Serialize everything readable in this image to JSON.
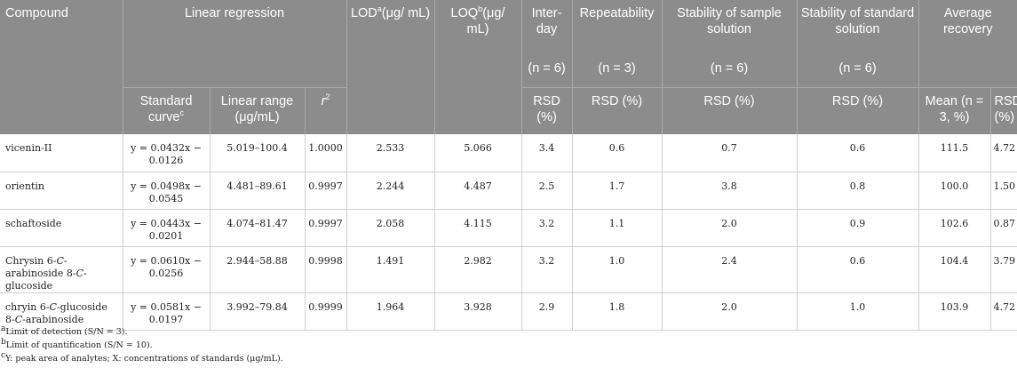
{
  "header": {
    "compound": "Compound",
    "linear_regression": "Linear regression",
    "lod_pre": "LOD",
    "lod_sup": "a",
    "lod_post": "(μg/ mL)",
    "loq_pre": "LOQ",
    "loq_sup": "b",
    "loq_post": "(μg/ mL)",
    "interday": "Inter-day",
    "repeatability": "Repeatability",
    "stability_sample": "Stability of sample solution",
    "stability_standard": "Stability of standard solution",
    "average_recovery": "Average recovery",
    "n_interday": "(n = 6)",
    "n_repeat": "(n = 3)",
    "n_sample": "(n = 6)",
    "n_standard": "(n = 6)",
    "std_curve": "Standard curve",
    "std_curve_sup": "c",
    "linear_range": "Linear range (μg/mL)",
    "r_italic": "r",
    "r_sup": "2",
    "rsd_interday": "RSD (%)",
    "rsd_repeat": "RSD (%)",
    "rsd_sample": "RSD (%)",
    "rsd_standard": "RSD (%)",
    "mean": "Mean (n = 3, %)",
    "rsd_recovery": "RSD (%)"
  },
  "rows": [
    {
      "compound_a": "vicenin-II",
      "compound_i1": "",
      "compound_b": "",
      "compound_i2": "",
      "compound_c": "",
      "curve": "y = 0.0432x − 0.0126",
      "range": "5.019–100.4",
      "r2": "1.0000",
      "lod": "2.533",
      "loq": "5.066",
      "interday": "3.4",
      "repeat": "0.6",
      "sample": "0.7",
      "standard": "0.6",
      "mean": "111.5",
      "rsd": "4.72"
    },
    {
      "compound_a": "orientin",
      "compound_i1": "",
      "compound_b": "",
      "compound_i2": "",
      "compound_c": "",
      "curve": "y = 0.0498x − 0.0545",
      "range": "4.481–89.61",
      "r2": "0.9997",
      "lod": "2.244",
      "loq": "4.487",
      "interday": "2.5",
      "repeat": "1.7",
      "sample": "3.8",
      "standard": "0.8",
      "mean": "100.0",
      "rsd": "1.50"
    },
    {
      "compound_a": "schaftoside",
      "compound_i1": "",
      "compound_b": "",
      "compound_i2": "",
      "compound_c": "",
      "curve": "y = 0.0443x − 0.0201",
      "range": "4.074–81.47",
      "r2": "0.9997",
      "lod": "2.058",
      "loq": "4.115",
      "interday": "3.2",
      "repeat": "1.1",
      "sample": "2.0",
      "standard": "0.9",
      "mean": "102.6",
      "rsd": "0.87"
    },
    {
      "compound_a": "Chrysin 6-",
      "compound_i1": "C",
      "compound_b": "-arabinoside 8-",
      "compound_i2": "C",
      "compound_c": "-glucoside",
      "curve": "y = 0.0610x − 0.0256",
      "range": "2.944–58.88",
      "r2": "0.9998",
      "lod": "1.491",
      "loq": "2.982",
      "interday": "3.2",
      "repeat": "1.0",
      "sample": "2.4",
      "standard": "0.6",
      "mean": "104.4",
      "rsd": "3.79"
    },
    {
      "compound_a": "chryin 6-",
      "compound_i1": "C",
      "compound_b": "-glucoside 8-",
      "compound_i2": "C",
      "compound_c": "-arabinoside",
      "curve": "y = 0.0581x − 0.0197",
      "range": "3.992–79.84",
      "r2": "0.9999",
      "lod": "1.964",
      "loq": "3.928",
      "interday": "2.9",
      "repeat": "1.8",
      "sample": "2.0",
      "standard": "1.0",
      "mean": "103.9",
      "rsd": "4.72"
    }
  ],
  "footnotes": [
    {
      "sup": "a",
      "text": "Limit of detection (S/N = 3)."
    },
    {
      "sup": "b",
      "text": "Limit of quantification (S/N = 10)."
    },
    {
      "sup": "c",
      "text": "Y: peak area of analytes; X: concentrations of standards (μg/mL)."
    }
  ]
}
